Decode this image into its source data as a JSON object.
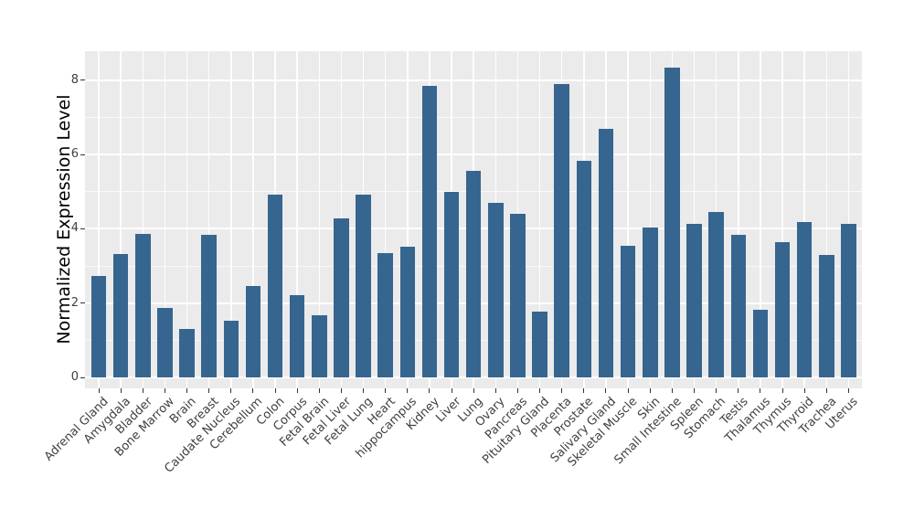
{
  "figure": {
    "background": "#ffffff",
    "panel_background": "#ebebeb",
    "grid_color": "#ffffff",
    "bar_color": "#366590",
    "axis_text_color": "#404040",
    "axis_title_color": "#000000",
    "tick_mark_color": "#333333"
  },
  "chart_data": {
    "type": "bar",
    "title": "",
    "xlabel": "",
    "ylabel": "Normalized Expression Level",
    "categories": [
      "Adrenal Gland",
      "Amygdala",
      "Bladder",
      "Bone Marrow",
      "Brain",
      "Breast",
      "Caudate Nucleus",
      "Cerebellum",
      "Colon",
      "Corpus",
      "Fetal Brain",
      "Fetal Liver",
      "Fetal Lung",
      "Heart",
      "hippocampus",
      "Kidney",
      "Liver",
      "Lung",
      "Ovary",
      "Pancreas",
      "Pituitary Gland",
      "Placenta",
      "Prostate",
      "Salivary Gland",
      "Skeletal Muscle",
      "Skin",
      "Small Intestine",
      "Spleen",
      "Stomach",
      "Testis",
      "Thalamus",
      "Thymus",
      "Thyroid",
      "Trachea",
      "Uterus"
    ],
    "values": [
      2.74,
      3.31,
      3.87,
      1.88,
      1.3,
      3.85,
      1.53,
      2.47,
      4.91,
      2.21,
      1.68,
      4.27,
      4.93,
      3.34,
      3.52,
      7.86,
      4.99,
      5.55,
      4.7,
      4.4,
      1.78,
      7.9,
      5.83,
      6.69,
      3.54,
      4.03,
      8.33,
      4.14,
      4.45,
      3.85,
      1.81,
      3.64,
      4.19,
      3.3,
      4.14
    ],
    "yticks": [
      0,
      2,
      4,
      6,
      8
    ],
    "ytick_labels": [
      "0",
      "2",
      "4",
      "6",
      "8"
    ],
    "ylim": [
      -0.3,
      8.78
    ],
    "x_tick_rotation_deg": 45,
    "grid": {
      "horizontal_major_at": [
        0,
        2,
        4,
        6,
        8
      ],
      "horizontal_minor_at": [
        1,
        3,
        5,
        7
      ],
      "vertical": "white line at each category center",
      "style": "white gridlines on gray panel (ggplot theme_grey)"
    },
    "legend_position": "none"
  }
}
